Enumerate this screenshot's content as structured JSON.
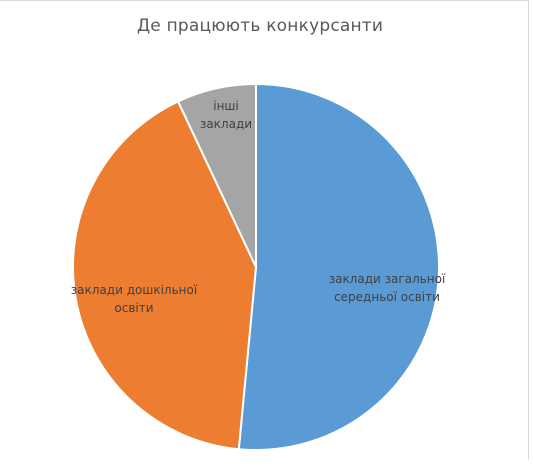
{
  "chart_data": {
    "type": "pie",
    "title": "Де працюють конкурсанти",
    "slices": [
      {
        "label_lines": [
          "заклади загальної",
          "середньої освіти"
        ],
        "value": 51.5,
        "color": "#5b9bd5"
      },
      {
        "label_lines": [
          "заклади дошкільної",
          "освіти"
        ],
        "value": 41.5,
        "color": "#ed7d31"
      },
      {
        "label_lines": [
          "інші",
          "заклади"
        ],
        "value": 7.0,
        "color": "#a5a5a5"
      }
    ]
  }
}
